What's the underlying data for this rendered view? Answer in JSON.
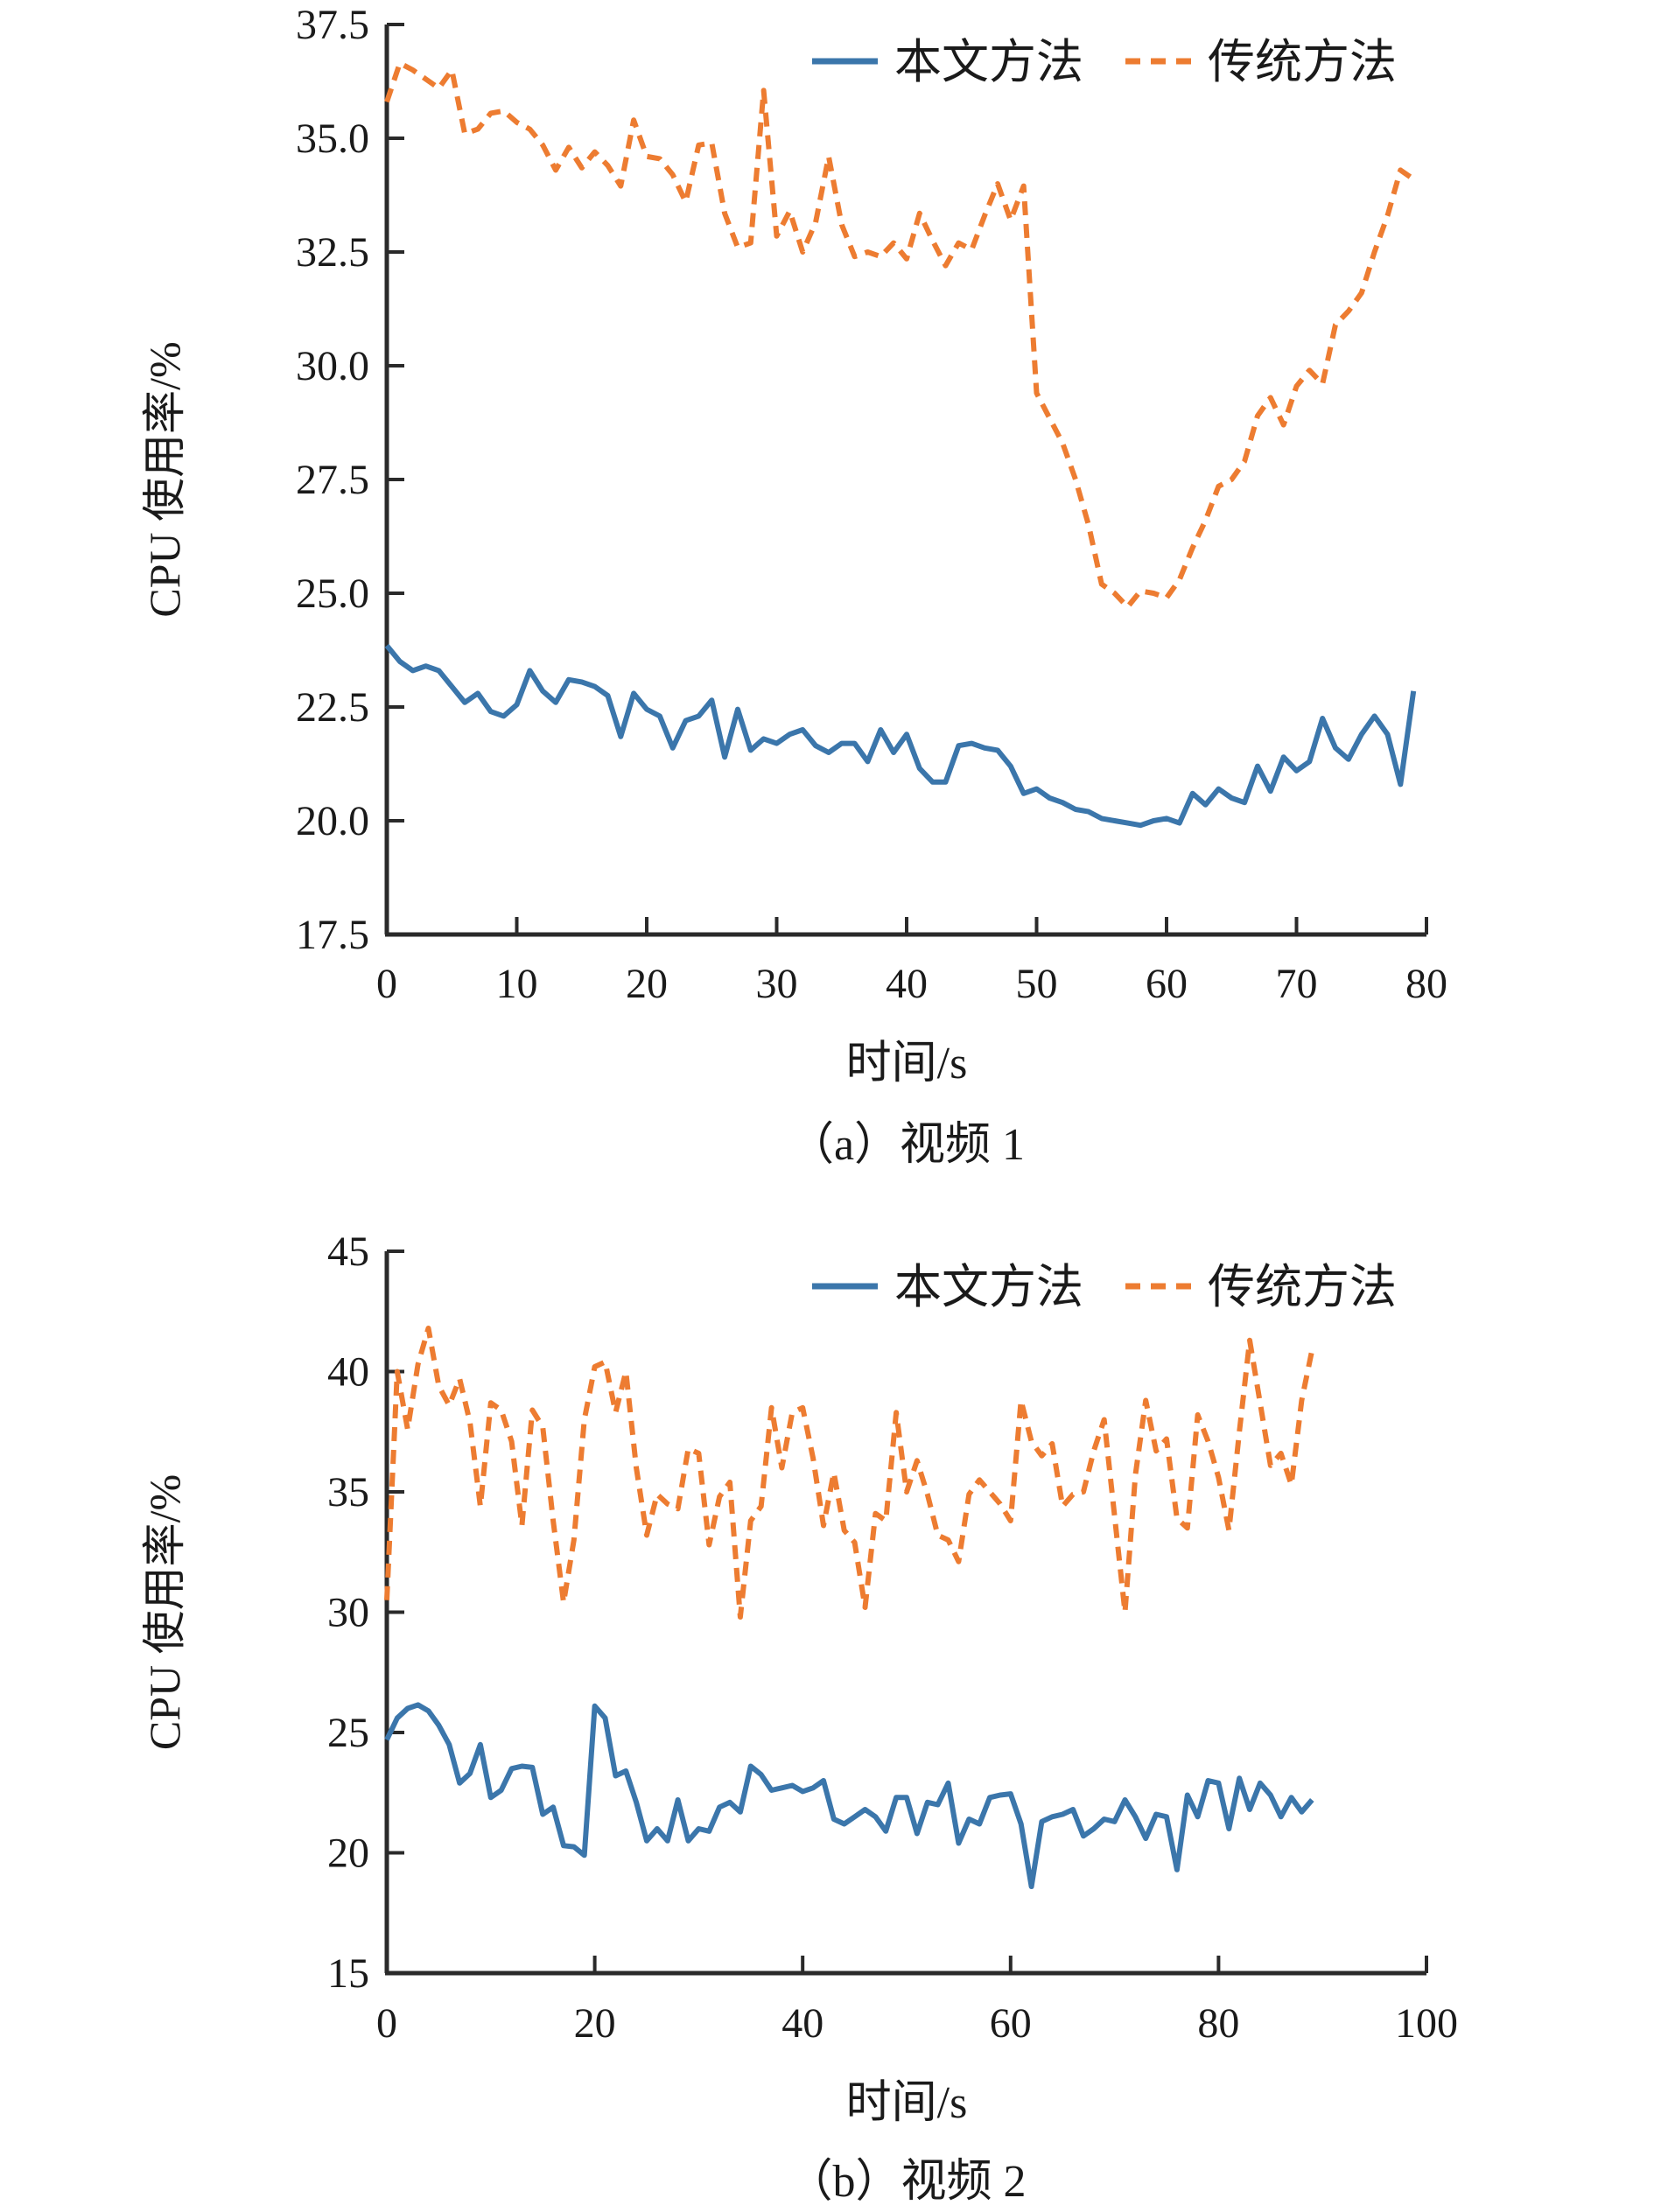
{
  "colors": {
    "series_blue": "#3b76ab",
    "series_orange": "#ed7c31",
    "axis": "#2a2a2a",
    "text": "#1a1a1a",
    "background": "#ffffff"
  },
  "chart_data": [
    {
      "type": "line",
      "caption": "（a）视频 1",
      "xlabel": "时间/s",
      "ylabel": "CPU 使用率/%",
      "xlim": [
        0,
        80
      ],
      "ylim": [
        17.5,
        37.5
      ],
      "xticks": [
        0,
        10,
        20,
        30,
        40,
        50,
        60,
        70,
        80
      ],
      "xtick_labels": [
        "0",
        "10",
        "20",
        "30",
        "40",
        "50",
        "60",
        "70",
        "80"
      ],
      "yticks": [
        17.5,
        20.0,
        22.5,
        25.0,
        27.5,
        30.0,
        32.5,
        35.0,
        37.5
      ],
      "ytick_labels": [
        "17.5",
        "20.0",
        "22.5",
        "25.0",
        "27.5",
        "30.0",
        "32.5",
        "35.0",
        "37.5"
      ],
      "grid": false,
      "legend_position": "top-inside",
      "series": [
        {
          "name": "本文方法",
          "color": "#3b76ab",
          "line": "solid",
          "x_start": 0,
          "x_step": 1,
          "values": [
            23.85,
            23.5,
            23.3,
            23.4,
            23.3,
            22.95,
            22.6,
            22.8,
            22.4,
            22.3,
            22.55,
            23.3,
            22.85,
            22.6,
            23.1,
            23.05,
            22.95,
            22.75,
            21.85,
            22.8,
            22.45,
            22.3,
            21.6,
            22.2,
            22.3,
            22.65,
            21.4,
            22.45,
            21.55,
            21.8,
            21.7,
            21.9,
            22.0,
            21.65,
            21.5,
            21.7,
            21.7,
            21.3,
            22.0,
            21.5,
            21.9,
            21.15,
            20.85,
            20.85,
            21.65,
            21.7,
            21.6,
            21.55,
            21.2,
            20.6,
            20.7,
            20.5,
            20.4,
            20.25,
            20.2,
            20.05,
            20.0,
            19.95,
            19.9,
            20.0,
            20.05,
            19.95,
            20.6,
            20.35,
            20.7,
            20.5,
            20.4,
            21.2,
            20.65,
            21.4,
            21.1,
            21.3,
            22.25,
            21.6,
            21.35,
            21.9,
            22.3,
            21.9,
            20.8,
            22.85
          ]
        },
        {
          "name": "传统方法",
          "color": "#ed7c31",
          "line": "dashed",
          "x_start": 0,
          "x_step": 1,
          "values": [
            35.8,
            36.65,
            36.5,
            36.3,
            36.1,
            36.5,
            35.1,
            35.2,
            35.55,
            35.6,
            35.35,
            35.2,
            34.85,
            34.3,
            34.8,
            34.35,
            34.7,
            34.4,
            33.95,
            35.4,
            34.6,
            34.55,
            34.2,
            33.6,
            34.85,
            34.9,
            33.35,
            32.6,
            32.7,
            36.05,
            32.85,
            33.4,
            32.5,
            33.15,
            34.6,
            33.1,
            32.4,
            32.5,
            32.4,
            32.7,
            32.35,
            33.35,
            32.75,
            32.2,
            32.7,
            32.55,
            33.3,
            34.0,
            33.2,
            33.95,
            29.4,
            28.85,
            28.3,
            27.5,
            26.5,
            25.2,
            25.0,
            24.7,
            25.05,
            25.0,
            24.9,
            25.3,
            26.0,
            26.6,
            27.35,
            27.5,
            27.9,
            28.9,
            29.3,
            28.7,
            29.55,
            29.9,
            29.6,
            30.9,
            31.2,
            31.6,
            32.5,
            33.3,
            34.3,
            34.1
          ]
        }
      ]
    },
    {
      "type": "line",
      "caption": "（b）视频 2",
      "xlabel": "时间/s",
      "ylabel": "CPU 使用率/%",
      "xlim": [
        0,
        100
      ],
      "ylim": [
        15,
        45
      ],
      "xticks": [
        0,
        20,
        40,
        60,
        80,
        100
      ],
      "xtick_labels": [
        "0",
        "20",
        "40",
        "60",
        "80",
        "100"
      ],
      "yticks": [
        15,
        20,
        25,
        30,
        35,
        40,
        45
      ],
      "ytick_labels": [
        "15",
        "20",
        "25",
        "30",
        "35",
        "40",
        "45"
      ],
      "grid": false,
      "legend_position": "top-inside",
      "series": [
        {
          "name": "本文方法",
          "color": "#3b76ab",
          "line": "solid",
          "x_start": 0,
          "x_step": 1,
          "values": [
            24.7,
            25.6,
            26.0,
            26.15,
            25.9,
            25.3,
            24.5,
            22.9,
            23.3,
            24.5,
            22.3,
            22.6,
            23.5,
            23.6,
            23.55,
            21.6,
            21.9,
            20.3,
            20.25,
            19.9,
            26.1,
            25.6,
            23.2,
            23.4,
            22.1,
            20.5,
            21.0,
            20.5,
            22.2,
            20.5,
            21.0,
            20.9,
            21.9,
            22.1,
            21.7,
            23.6,
            23.25,
            22.6,
            22.7,
            22.8,
            22.55,
            22.7,
            23.0,
            21.4,
            21.2,
            21.5,
            21.8,
            21.5,
            20.9,
            22.3,
            22.3,
            20.8,
            22.1,
            22.0,
            22.9,
            20.4,
            21.4,
            21.2,
            22.3,
            22.4,
            22.45,
            21.2,
            18.6,
            21.3,
            21.5,
            21.6,
            21.8,
            20.7,
            21.0,
            21.4,
            21.3,
            22.2,
            21.5,
            20.6,
            21.6,
            21.5,
            19.3,
            22.4,
            21.5,
            23.0,
            22.9,
            21.0,
            23.1,
            21.8,
            22.9,
            22.4,
            21.5,
            22.3,
            21.7,
            22.2
          ]
        },
        {
          "name": "传统方法",
          "color": "#ed7c31",
          "line": "dashed",
          "x_start": 0,
          "x_step": 1,
          "values": [
            30.5,
            40.0,
            37.6,
            40.3,
            41.8,
            39.4,
            38.6,
            39.7,
            37.9,
            34.4,
            38.7,
            38.4,
            37.1,
            33.6,
            38.4,
            37.7,
            33.8,
            30.4,
            33.0,
            38.0,
            40.2,
            40.4,
            38.3,
            40.0,
            36.0,
            33.2,
            34.9,
            34.5,
            34.3,
            36.8,
            36.6,
            32.8,
            34.8,
            35.4,
            29.8,
            33.8,
            34.4,
            38.5,
            36.0,
            38.3,
            38.5,
            36.4,
            33.6,
            35.8,
            33.4,
            32.9,
            30.2,
            34.1,
            33.8,
            38.3,
            35.0,
            36.3,
            34.9,
            33.2,
            33.0,
            32.1,
            34.9,
            35.5,
            35.0,
            34.5,
            33.8,
            38.8,
            37.1,
            36.5,
            37.0,
            34.4,
            34.9,
            35.0,
            36.7,
            38.0,
            34.0,
            30.0,
            35.7,
            38.8,
            36.7,
            37.2,
            33.9,
            33.5,
            38.2,
            37.1,
            35.6,
            33.4,
            37.5,
            41.3,
            38.7,
            36.1,
            36.6,
            35.3,
            38.8,
            40.9
          ]
        }
      ]
    }
  ]
}
